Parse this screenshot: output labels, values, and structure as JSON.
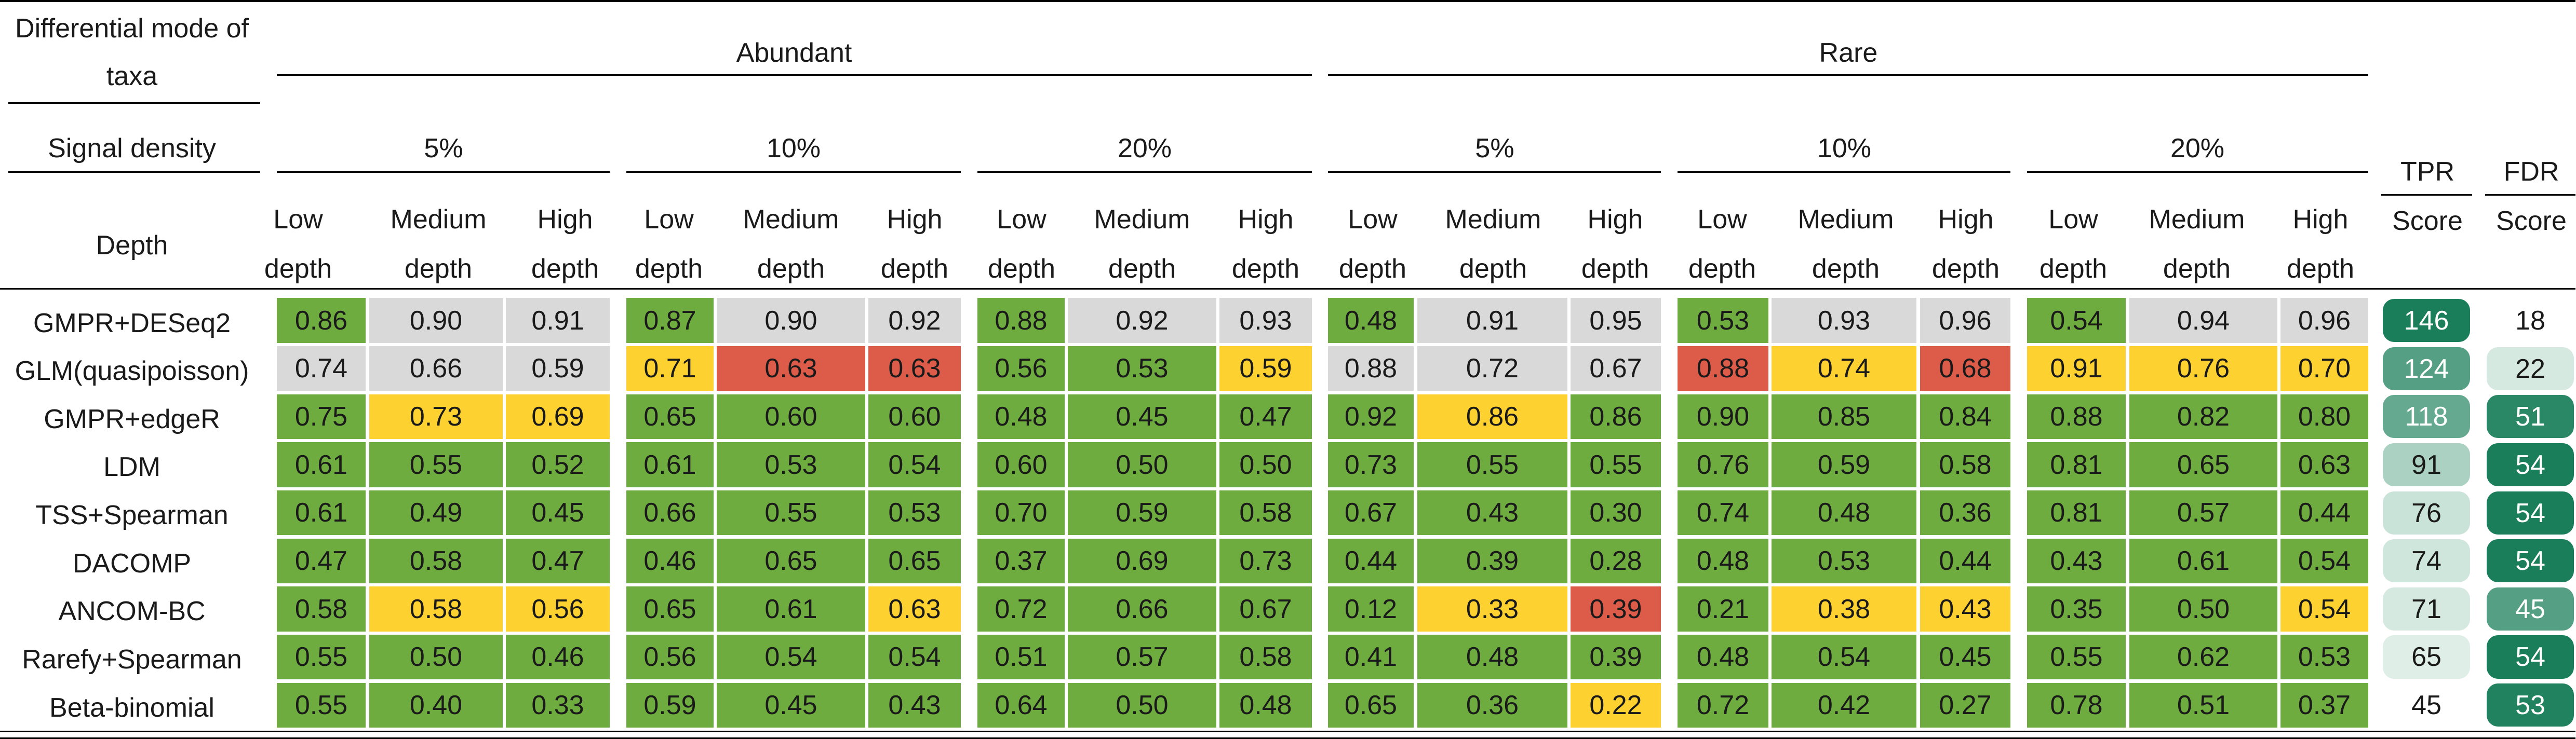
{
  "header": {
    "mode_label_line1": "Differential mode of",
    "mode_label_line2": "taxa",
    "signal_label": "Signal density",
    "depth_label": "Depth",
    "groups": [
      "Abundant",
      "Rare"
    ],
    "densities": [
      "5%",
      "10%",
      "20%"
    ],
    "depth_line1": [
      "Low",
      "Medium",
      "High"
    ],
    "depth_line2": "depth",
    "tpr_line1": "TPR",
    "fdr_line1": "FDR",
    "score_line2": "Score"
  },
  "colors": {
    "green": "#6fac3f",
    "grey": "#d9d9d9",
    "yellow": "#fdd130",
    "red": "#dd5b49",
    "score_dark": "#1a7e5a",
    "score_light": "#eef8f3"
  },
  "rows": [
    {
      "method": "GMPR+DESeq2",
      "values": [
        "0.86",
        "0.90",
        "0.91",
        "0.87",
        "0.90",
        "0.92",
        "0.88",
        "0.92",
        "0.93",
        "0.48",
        "0.91",
        "0.95",
        "0.53",
        "0.93",
        "0.96",
        "0.54",
        "0.94",
        "0.96"
      ],
      "colors": [
        "G",
        "S",
        "S",
        "G",
        "S",
        "S",
        "G",
        "S",
        "S",
        "G",
        "S",
        "S",
        "G",
        "S",
        "S",
        "G",
        "S",
        "S"
      ],
      "tpr": "146",
      "tpr_level": 1.0,
      "fdr": "18",
      "fdr_level": 0.0
    },
    {
      "method": "GLM(quasipoisson)",
      "values": [
        "0.74",
        "0.66",
        "0.59",
        "0.71",
        "0.63",
        "0.63",
        "0.56",
        "0.53",
        "0.59",
        "0.88",
        "0.72",
        "0.67",
        "0.88",
        "0.74",
        "0.68",
        "0.91",
        "0.76",
        "0.70"
      ],
      "colors": [
        "S",
        "S",
        "S",
        "Y",
        "R",
        "R",
        "G",
        "G",
        "Y",
        "S",
        "S",
        "S",
        "R",
        "Y",
        "R",
        "Y",
        "Y",
        "Y"
      ],
      "tpr": "124",
      "tpr_level": 0.72,
      "fdr": "22",
      "fdr_level": 0.12
    },
    {
      "method": "GMPR+edgeR",
      "values": [
        "0.75",
        "0.73",
        "0.69",
        "0.65",
        "0.60",
        "0.60",
        "0.48",
        "0.45",
        "0.47",
        "0.92",
        "0.86",
        "0.86",
        "0.90",
        "0.85",
        "0.84",
        "0.88",
        "0.82",
        "0.80"
      ],
      "colors": [
        "G",
        "Y",
        "Y",
        "G",
        "G",
        "G",
        "G",
        "G",
        "G",
        "G",
        "Y",
        "G",
        "G",
        "G",
        "G",
        "G",
        "G",
        "G"
      ],
      "tpr": "118",
      "tpr_level": 0.65,
      "fdr": "51",
      "fdr_level": 0.92
    },
    {
      "method": "LDM",
      "values": [
        "0.61",
        "0.55",
        "0.52",
        "0.61",
        "0.53",
        "0.54",
        "0.60",
        "0.50",
        "0.50",
        "0.73",
        "0.55",
        "0.55",
        "0.76",
        "0.59",
        "0.58",
        "0.81",
        "0.65",
        "0.63"
      ],
      "colors": [
        "G",
        "G",
        "G",
        "G",
        "G",
        "G",
        "G",
        "G",
        "G",
        "G",
        "G",
        "G",
        "G",
        "G",
        "G",
        "G",
        "G",
        "G"
      ],
      "tpr": "91",
      "tpr_level": 0.32,
      "fdr": "54",
      "fdr_level": 1.0
    },
    {
      "method": "TSS+Spearman",
      "values": [
        "0.61",
        "0.49",
        "0.45",
        "0.66",
        "0.55",
        "0.53",
        "0.70",
        "0.59",
        "0.58",
        "0.67",
        "0.43",
        "0.30",
        "0.74",
        "0.48",
        "0.36",
        "0.81",
        "0.57",
        "0.44"
      ],
      "colors": [
        "G",
        "G",
        "G",
        "G",
        "G",
        "G",
        "G",
        "G",
        "G",
        "G",
        "G",
        "G",
        "G",
        "G",
        "G",
        "G",
        "G",
        "G"
      ],
      "tpr": "76",
      "tpr_level": 0.17,
      "fdr": "54",
      "fdr_level": 1.0
    },
    {
      "method": "DACOMP",
      "values": [
        "0.47",
        "0.58",
        "0.47",
        "0.46",
        "0.65",
        "0.65",
        "0.37",
        "0.69",
        "0.73",
        "0.44",
        "0.39",
        "0.28",
        "0.48",
        "0.53",
        "0.44",
        "0.43",
        "0.61",
        "0.54"
      ],
      "colors": [
        "G",
        "G",
        "G",
        "G",
        "G",
        "G",
        "G",
        "G",
        "G",
        "G",
        "G",
        "G",
        "G",
        "G",
        "G",
        "G",
        "G",
        "G"
      ],
      "tpr": "74",
      "tpr_level": 0.15,
      "fdr": "54",
      "fdr_level": 1.0
    },
    {
      "method": "ANCOM-BC",
      "values": [
        "0.58",
        "0.58",
        "0.56",
        "0.65",
        "0.61",
        "0.63",
        "0.72",
        "0.66",
        "0.67",
        "0.12",
        "0.33",
        "0.39",
        "0.21",
        "0.38",
        "0.43",
        "0.35",
        "0.50",
        "0.54"
      ],
      "colors": [
        "G",
        "Y",
        "Y",
        "G",
        "G",
        "Y",
        "G",
        "G",
        "G",
        "G",
        "Y",
        "R",
        "G",
        "Y",
        "Y",
        "G",
        "G",
        "Y"
      ],
      "tpr": "71",
      "tpr_level": 0.12,
      "fdr": "45",
      "fdr_level": 0.72
    },
    {
      "method": "Rarefy+Spearman",
      "values": [
        "0.55",
        "0.50",
        "0.46",
        "0.56",
        "0.54",
        "0.54",
        "0.51",
        "0.57",
        "0.58",
        "0.41",
        "0.48",
        "0.39",
        "0.48",
        "0.54",
        "0.45",
        "0.55",
        "0.62",
        "0.53"
      ],
      "colors": [
        "G",
        "G",
        "G",
        "G",
        "G",
        "G",
        "G",
        "G",
        "G",
        "G",
        "G",
        "G",
        "G",
        "G",
        "G",
        "G",
        "G",
        "G"
      ],
      "tpr": "65",
      "tpr_level": 0.07,
      "fdr": "54",
      "fdr_level": 1.0
    },
    {
      "method": "Beta-binomial",
      "values": [
        "0.55",
        "0.40",
        "0.33",
        "0.59",
        "0.45",
        "0.43",
        "0.64",
        "0.50",
        "0.48",
        "0.65",
        "0.36",
        "0.22",
        "0.72",
        "0.42",
        "0.27",
        "0.78",
        "0.51",
        "0.37"
      ],
      "colors": [
        "G",
        "G",
        "G",
        "G",
        "G",
        "G",
        "G",
        "G",
        "G",
        "G",
        "G",
        "Y",
        "G",
        "G",
        "G",
        "G",
        "G",
        "G"
      ],
      "tpr": "45",
      "tpr_level": 0.0,
      "fdr": "53",
      "fdr_level": 0.97
    }
  ]
}
